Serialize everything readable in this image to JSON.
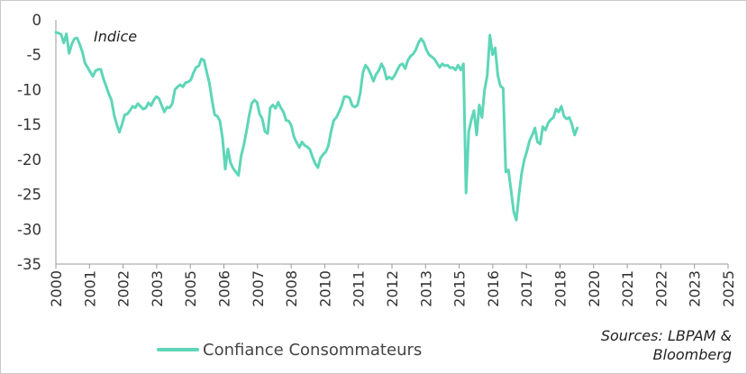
{
  "chart_data": {
    "type": "line",
    "annotation": "Indice",
    "source_line1": "Sources: LBPAM &",
    "source_line2": "Bloomberg",
    "ylim": [
      -35,
      0
    ],
    "yticks": [
      0,
      -5,
      -10,
      -15,
      -20,
      -25,
      -30,
      -35
    ],
    "xlim": [
      2000.0,
      2025.4
    ],
    "xtick_labels": [
      "2000",
      "2001",
      "2002",
      "2003",
      "2005",
      "2006",
      "2007",
      "2008",
      "2010",
      "2011",
      "2012",
      "2013",
      "2015",
      "2016",
      "2017",
      "2018",
      "2020",
      "2021",
      "2022",
      "2023",
      "2025"
    ],
    "grid": false,
    "legend_position": "bottom-left",
    "series": [
      {
        "name": "Confiance Consommateurs",
        "color": "#5ED6B8",
        "points": [
          [
            2000.0,
            -1.8
          ],
          [
            2000.1,
            -1.9
          ],
          [
            2000.2,
            -2.1
          ],
          [
            2000.3,
            -3.3
          ],
          [
            2000.4,
            -2.0
          ],
          [
            2000.5,
            -4.8
          ],
          [
            2000.6,
            -3.5
          ],
          [
            2000.7,
            -2.7
          ],
          [
            2000.8,
            -2.6
          ],
          [
            2000.9,
            -3.5
          ],
          [
            2001.0,
            -4.6
          ],
          [
            2001.1,
            -6.2
          ],
          [
            2001.2,
            -6.8
          ],
          [
            2001.3,
            -7.5
          ],
          [
            2001.4,
            -8.1
          ],
          [
            2001.5,
            -7.3
          ],
          [
            2001.6,
            -7.1
          ],
          [
            2001.7,
            -7.1
          ],
          [
            2001.8,
            -8.5
          ],
          [
            2001.9,
            -9.5
          ],
          [
            2002.0,
            -10.6
          ],
          [
            2002.1,
            -11.5
          ],
          [
            2002.2,
            -13.6
          ],
          [
            2002.3,
            -15.0
          ],
          [
            2002.4,
            -16.1
          ],
          [
            2002.5,
            -15.0
          ],
          [
            2002.6,
            -13.6
          ],
          [
            2002.7,
            -13.5
          ],
          [
            2002.8,
            -13.0
          ],
          [
            2002.9,
            -12.4
          ],
          [
            2003.0,
            -12.6
          ],
          [
            2003.1,
            -12.0
          ],
          [
            2003.2,
            -12.4
          ],
          [
            2003.3,
            -12.8
          ],
          [
            2003.4,
            -12.6
          ],
          [
            2003.5,
            -11.9
          ],
          [
            2003.6,
            -12.3
          ],
          [
            2003.7,
            -11.5
          ],
          [
            2003.8,
            -11.0
          ],
          [
            2003.9,
            -11.3
          ],
          [
            2004.0,
            -12.3
          ],
          [
            2004.1,
            -13.2
          ],
          [
            2004.2,
            -12.5
          ],
          [
            2004.3,
            -12.6
          ],
          [
            2004.4,
            -12.0
          ],
          [
            2004.5,
            -10.0
          ],
          [
            2004.6,
            -9.6
          ],
          [
            2004.7,
            -9.3
          ],
          [
            2004.8,
            -9.6
          ],
          [
            2004.9,
            -9.0
          ],
          [
            2005.0,
            -8.9
          ],
          [
            2005.1,
            -8.6
          ],
          [
            2005.2,
            -7.6
          ],
          [
            2005.3,
            -6.8
          ],
          [
            2005.4,
            -6.6
          ],
          [
            2005.5,
            -5.6
          ],
          [
            2005.6,
            -5.8
          ],
          [
            2005.7,
            -7.5
          ],
          [
            2005.8,
            -9.0
          ],
          [
            2005.9,
            -11.5
          ],
          [
            2006.0,
            -13.6
          ],
          [
            2006.1,
            -13.8
          ],
          [
            2006.2,
            -14.5
          ],
          [
            2006.3,
            -17.0
          ],
          [
            2006.4,
            -21.4
          ],
          [
            2006.5,
            -18.5
          ],
          [
            2006.6,
            -20.5
          ],
          [
            2006.7,
            -21.3
          ],
          [
            2006.8,
            -21.8
          ],
          [
            2006.9,
            -22.3
          ],
          [
            2007.0,
            -19.5
          ],
          [
            2007.1,
            -18.0
          ],
          [
            2007.2,
            -16.0
          ],
          [
            2007.3,
            -13.8
          ],
          [
            2007.4,
            -12.0
          ],
          [
            2007.5,
            -11.5
          ],
          [
            2007.6,
            -11.8
          ],
          [
            2007.7,
            -13.5
          ],
          [
            2007.8,
            -14.2
          ],
          [
            2007.9,
            -16.0
          ],
          [
            2008.0,
            -16.3
          ],
          [
            2008.1,
            -12.6
          ],
          [
            2008.2,
            -12.2
          ],
          [
            2008.3,
            -12.7
          ],
          [
            2008.4,
            -11.8
          ],
          [
            2008.5,
            -12.6
          ],
          [
            2008.6,
            -13.2
          ],
          [
            2008.7,
            -14.4
          ],
          [
            2008.8,
            -14.5
          ],
          [
            2008.9,
            -15.2
          ],
          [
            2009.0,
            -16.8
          ],
          [
            2009.1,
            -17.6
          ],
          [
            2009.2,
            -18.3
          ],
          [
            2009.3,
            -17.5
          ],
          [
            2009.4,
            -18.0
          ],
          [
            2009.5,
            -18.2
          ],
          [
            2009.6,
            -18.6
          ],
          [
            2009.7,
            -19.7
          ],
          [
            2009.8,
            -20.6
          ],
          [
            2009.9,
            -21.2
          ],
          [
            2010.0,
            -19.8
          ],
          [
            2010.1,
            -19.3
          ],
          [
            2010.2,
            -18.9
          ],
          [
            2010.3,
            -18.0
          ],
          [
            2010.4,
            -16.0
          ],
          [
            2010.5,
            -14.4
          ],
          [
            2010.6,
            -14.0
          ],
          [
            2010.7,
            -13.2
          ],
          [
            2010.8,
            -12.3
          ],
          [
            2010.9,
            -11.0
          ],
          [
            2011.0,
            -11.0
          ],
          [
            2011.1,
            -11.2
          ],
          [
            2011.2,
            -12.3
          ],
          [
            2011.3,
            -12.5
          ],
          [
            2011.4,
            -12.2
          ],
          [
            2011.5,
            -10.5
          ],
          [
            2011.6,
            -7.6
          ],
          [
            2011.7,
            -6.5
          ],
          [
            2011.8,
            -7.0
          ],
          [
            2011.9,
            -7.8
          ],
          [
            2012.0,
            -8.8
          ],
          [
            2012.1,
            -7.8
          ],
          [
            2012.2,
            -7.3
          ],
          [
            2012.3,
            -6.3
          ],
          [
            2012.4,
            -7.0
          ],
          [
            2012.5,
            -8.5
          ],
          [
            2012.6,
            -8.2
          ],
          [
            2012.7,
            -8.5
          ],
          [
            2012.8,
            -8.0
          ],
          [
            2012.9,
            -7.2
          ],
          [
            2013.0,
            -6.5
          ],
          [
            2013.1,
            -6.3
          ],
          [
            2013.2,
            -7.0
          ],
          [
            2013.3,
            -5.8
          ],
          [
            2013.4,
            -5.2
          ],
          [
            2013.5,
            -4.9
          ],
          [
            2013.6,
            -4.3
          ],
          [
            2013.7,
            -3.3
          ],
          [
            2013.8,
            -2.7
          ],
          [
            2013.9,
            -3.2
          ],
          [
            2014.0,
            -4.3
          ],
          [
            2014.1,
            -5.0
          ],
          [
            2014.2,
            -5.3
          ],
          [
            2014.3,
            -5.6
          ],
          [
            2014.4,
            -6.2
          ],
          [
            2014.5,
            -6.8
          ],
          [
            2014.6,
            -6.3
          ],
          [
            2014.7,
            -6.6
          ],
          [
            2014.8,
            -6.5
          ],
          [
            2014.9,
            -6.9
          ],
          [
            2015.0,
            -6.8
          ],
          [
            2015.1,
            -7.2
          ],
          [
            2015.2,
            -6.5
          ],
          [
            2015.3,
            -7.2
          ],
          [
            2015.4,
            -6.3
          ],
          [
            2015.5,
            -24.8
          ],
          [
            2015.6,
            -16.0
          ],
          [
            2015.7,
            -14.3
          ],
          [
            2015.8,
            -13.0
          ],
          [
            2015.9,
            -16.5
          ],
          [
            2016.0,
            -12.2
          ],
          [
            2016.1,
            -14.0
          ],
          [
            2016.2,
            -10.0
          ],
          [
            2016.3,
            -8.0
          ],
          [
            2016.4,
            -2.2
          ],
          [
            2016.5,
            -5.0
          ],
          [
            2016.6,
            -4.0
          ],
          [
            2016.7,
            -8.0
          ],
          [
            2016.8,
            -9.5
          ],
          [
            2016.9,
            -9.8
          ],
          [
            2017.0,
            -21.8
          ],
          [
            2017.1,
            -21.5
          ],
          [
            2017.2,
            -24.5
          ],
          [
            2017.3,
            -27.5
          ],
          [
            2017.4,
            -28.7
          ],
          [
            2017.5,
            -25.0
          ],
          [
            2017.6,
            -22.0
          ],
          [
            2017.7,
            -20.0
          ],
          [
            2017.8,
            -18.8
          ],
          [
            2017.9,
            -17.3
          ],
          [
            2018.0,
            -16.5
          ],
          [
            2018.1,
            -15.5
          ],
          [
            2018.2,
            -17.5
          ],
          [
            2018.3,
            -17.8
          ],
          [
            2018.4,
            -15.3
          ],
          [
            2018.5,
            -15.8
          ],
          [
            2018.6,
            -14.8
          ],
          [
            2018.7,
            -14.3
          ],
          [
            2018.8,
            -14.0
          ],
          [
            2018.9,
            -12.8
          ],
          [
            2019.0,
            -13.2
          ],
          [
            2019.1,
            -12.4
          ],
          [
            2019.2,
            -13.8
          ],
          [
            2019.3,
            -14.2
          ],
          [
            2019.4,
            -14.0
          ],
          [
            2019.5,
            -15.0
          ],
          [
            2019.6,
            -16.5
          ],
          [
            2019.7,
            -15.5
          ]
        ]
      }
    ]
  }
}
